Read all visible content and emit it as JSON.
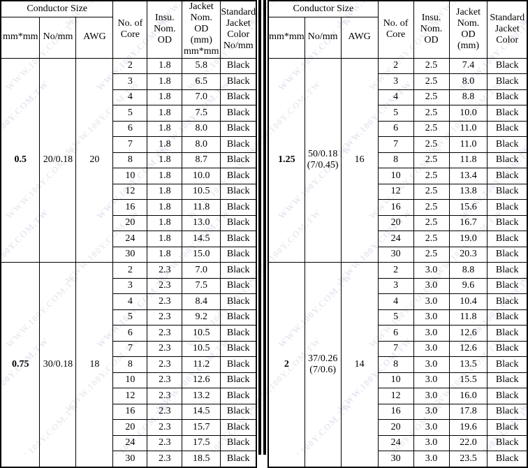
{
  "watermark": {
    "text": "WWW.100Y.COM.TW",
    "colors": [
      "#d8d3e6",
      "#dedede"
    ]
  },
  "tables": [
    {
      "header": {
        "conductor_size": "Conductor Size",
        "mm_mm": "mm*mm",
        "no_mm": "No/mm",
        "awg": "AWG",
        "no_of_core": "No. of\nCore",
        "insu_nom_od": "Insu.\nNom.\nOD",
        "jacket_nom_od": "Jacket\nNom.\nOD\n(mm)\nmm*mm",
        "jacket_color": "Standard\nJacket\nColor\nNo/mm"
      },
      "groups": [
        {
          "size": "0.5",
          "strands": "20/0.18",
          "awg": "20",
          "rows": [
            [
              "2",
              "1.8",
              "5.8",
              "Black"
            ],
            [
              "3",
              "1.8",
              "6.5",
              "Black"
            ],
            [
              "4",
              "1.8",
              "7.0",
              "Black"
            ],
            [
              "5",
              "1.8",
              "7.5",
              "Black"
            ],
            [
              "6",
              "1.8",
              "8.0",
              "Black"
            ],
            [
              "7",
              "1.8",
              "8.0",
              "Black"
            ],
            [
              "8",
              "1.8",
              "8.7",
              "Black"
            ],
            [
              "10",
              "1.8",
              "10.0",
              "Black"
            ],
            [
              "12",
              "1.8",
              "10.5",
              "Black"
            ],
            [
              "16",
              "1.8",
              "11.8",
              "Black"
            ],
            [
              "20",
              "1.8",
              "13.0",
              "Black"
            ],
            [
              "24",
              "1.8",
              "14.5",
              "Black"
            ],
            [
              "30",
              "1.8",
              "15.0",
              "Black"
            ]
          ]
        },
        {
          "size": "0.75",
          "strands": "30/0.18",
          "awg": "18",
          "rows": [
            [
              "2",
              "2.3",
              "7.0",
              "Black"
            ],
            [
              "3",
              "2.3",
              "7.5",
              "Black"
            ],
            [
              "4",
              "2.3",
              "8.4",
              "Black"
            ],
            [
              "5",
              "2.3",
              "9.2",
              "Black"
            ],
            [
              "6",
              "2.3",
              "10.5",
              "Black"
            ],
            [
              "7",
              "2.3",
              "10.5",
              "Black"
            ],
            [
              "8",
              "2.3",
              "11.2",
              "Black"
            ],
            [
              "10",
              "2.3",
              "12.6",
              "Black"
            ],
            [
              "12",
              "2.3",
              "13.2",
              "Black"
            ],
            [
              "16",
              "2.3",
              "14.5",
              "Black"
            ],
            [
              "20",
              "2.3",
              "15.7",
              "Black"
            ],
            [
              "24",
              "2.3",
              "17.5",
              "Black"
            ],
            [
              "30",
              "2.3",
              "18.5",
              "Black"
            ]
          ]
        }
      ]
    },
    {
      "header": {
        "conductor_size": "Conductor Size",
        "mm_mm": "mm*mm",
        "no_mm": "No/mm",
        "awg": "AWG",
        "no_of_core": "No. of\nCore",
        "insu_nom_od": "Insu.\nNom.\nOD",
        "jacket_nom_od": "Jacket\nNom.\nOD\n(mm)",
        "jacket_color": "Standard\nJacket\nColor"
      },
      "groups": [
        {
          "size": "1.25",
          "strands": "50/0.18\n(7/0.45)",
          "awg": "16",
          "rows": [
            [
              "2",
              "2.5",
              "7.4",
              "Black"
            ],
            [
              "3",
              "2.5",
              "8.0",
              "Black"
            ],
            [
              "4",
              "2.5",
              "8.8",
              "Black"
            ],
            [
              "5",
              "2.5",
              "10.0",
              "Black"
            ],
            [
              "6",
              "2.5",
              "11.0",
              "Black"
            ],
            [
              "7",
              "2.5",
              "11.0",
              "Black"
            ],
            [
              "8",
              "2.5",
              "11.8",
              "Black"
            ],
            [
              "10",
              "2.5",
              "13.4",
              "Black"
            ],
            [
              "12",
              "2.5",
              "13.8",
              "Black"
            ],
            [
              "16",
              "2.5",
              "15.6",
              "Black"
            ],
            [
              "20",
              "2.5",
              "16.7",
              "Black"
            ],
            [
              "24",
              "2.5",
              "19.0",
              "Black"
            ],
            [
              "30",
              "2.5",
              "20.3",
              "Black"
            ]
          ]
        },
        {
          "size": "2",
          "strands": "37/0.26\n(7/0.6)",
          "awg": "14",
          "rows": [
            [
              "2",
              "3.0",
              "8.8",
              "Black"
            ],
            [
              "3",
              "3.0",
              "9.6",
              "Black"
            ],
            [
              "4",
              "3.0",
              "10.4",
              "Black"
            ],
            [
              "5",
              "3.0",
              "11.8",
              "Black"
            ],
            [
              "6",
              "3.0",
              "12.6",
              "Black"
            ],
            [
              "7",
              "3.0",
              "12.6",
              "Black"
            ],
            [
              "8",
              "3.0",
              "13.5",
              "Black"
            ],
            [
              "10",
              "3.0",
              "15.5",
              "Black"
            ],
            [
              "12",
              "3.0",
              "16.0",
              "Black"
            ],
            [
              "16",
              "3.0",
              "17.8",
              "Black"
            ],
            [
              "20",
              "3.0",
              "19.6",
              "Black"
            ],
            [
              "24",
              "3.0",
              "22.0",
              "Black"
            ],
            [
              "30",
              "3.0",
              "23.5",
              "Black"
            ]
          ]
        }
      ]
    }
  ]
}
